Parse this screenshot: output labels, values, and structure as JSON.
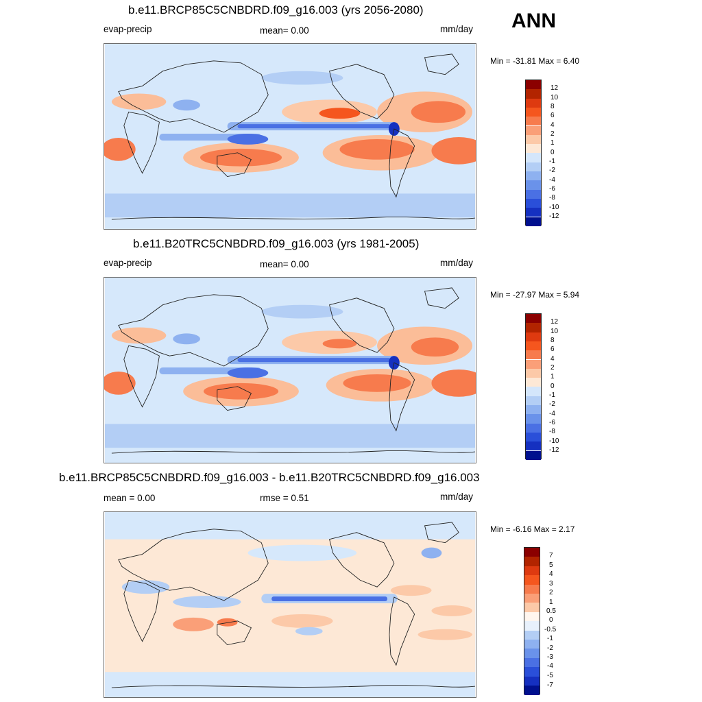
{
  "season": "ANN",
  "panels": [
    {
      "title": "b.e11.BRCP85C5CNBDRD.f09_g16.003 (yrs 2056-2080)",
      "left_label": "evap-precip",
      "center_label": "mean=   0.00",
      "right_label": "mm/day",
      "minmax": "Min = -31.81 Max =    6.40",
      "colorbar": {
        "labels": [
          "12",
          "10",
          "8",
          "6",
          "4",
          "2",
          "1",
          "0",
          "-1",
          "-2",
          "-4",
          "-6",
          "-8",
          "-10",
          "-12"
        ],
        "colors": [
          "#8b0000",
          "#b22400",
          "#de3a10",
          "#f5561e",
          "#f77b4d",
          "#fa9f78",
          "#fcc9a8",
          "#fde8d6",
          "#d4e6fb",
          "#b3cef5",
          "#8eb1f0",
          "#6a92ea",
          "#4a70e4",
          "#2a4fd9",
          "#1530c0",
          "#00108e"
        ]
      }
    },
    {
      "title": "b.e11.B20TRC5CNBDRD.f09_g16.003 (yrs 1981-2005)",
      "left_label": "evap-precip",
      "center_label": "mean=   0.00",
      "right_label": "mm/day",
      "minmax": "Min = -27.97 Max =    5.94",
      "colorbar": {
        "labels": [
          "12",
          "10",
          "8",
          "6",
          "4",
          "2",
          "1",
          "0",
          "-1",
          "-2",
          "-4",
          "-6",
          "-8",
          "-10",
          "-12"
        ],
        "colors": [
          "#8b0000",
          "#b22400",
          "#de3a10",
          "#f5561e",
          "#f77b4d",
          "#fa9f78",
          "#fcc9a8",
          "#fde8d6",
          "#d4e6fb",
          "#b3cef5",
          "#8eb1f0",
          "#6a92ea",
          "#4a70e4",
          "#2a4fd9",
          "#1530c0",
          "#00108e"
        ]
      }
    },
    {
      "title": "b.e11.BRCP85C5CNBDRD.f09_g16.003 - b.e11.B20TRC5CNBDRD.f09_g16.003",
      "left_label": "mean =   0.00",
      "center_label": "rmse =   0.51",
      "right_label": "mm/day",
      "minmax": "Min =  -6.16 Max =    2.17",
      "colorbar": {
        "labels": [
          "7",
          "5",
          "4",
          "3",
          "2",
          "1",
          "0.5",
          "0",
          "-0.5",
          "-1",
          "-2",
          "-3",
          "-4",
          "-5",
          "-7"
        ],
        "colors": [
          "#8b0000",
          "#b22400",
          "#de3a10",
          "#f5561e",
          "#f77b4d",
          "#fa9f78",
          "#fcc9a8",
          "#fde8d6",
          "#d4e6fb",
          "#b3cef5",
          "#8eb1f0",
          "#6a92ea",
          "#4a70e4",
          "#2a4fd9",
          "#1530c0",
          "#00108e"
        ]
      }
    }
  ]
}
